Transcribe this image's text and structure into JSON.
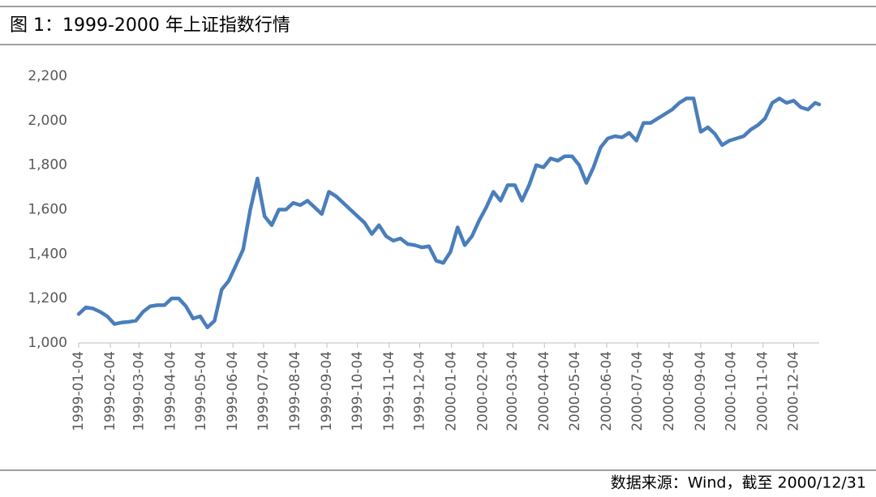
{
  "chart_data": {
    "type": "line",
    "title": "图 1：1999-2000 年上证指数行情",
    "source": "数据来源：Wind，截至 2000/12/31",
    "x": [
      "1999-01-04",
      "1999-01-11",
      "1999-01-18",
      "1999-01-25",
      "1999-02-01",
      "1999-02-08",
      "1999-02-15",
      "1999-02-22",
      "1999-03-01",
      "1999-03-08",
      "1999-03-15",
      "1999-03-22",
      "1999-03-29",
      "1999-04-05",
      "1999-04-12",
      "1999-04-19",
      "1999-04-26",
      "1999-05-03",
      "1999-05-10",
      "1999-05-17",
      "1999-05-24",
      "1999-05-31",
      "1999-06-07",
      "1999-06-14",
      "1999-06-21",
      "1999-06-28",
      "1999-07-05",
      "1999-07-12",
      "1999-07-19",
      "1999-07-26",
      "1999-08-02",
      "1999-08-09",
      "1999-08-16",
      "1999-08-23",
      "1999-08-30",
      "1999-09-06",
      "1999-09-13",
      "1999-09-20",
      "1999-09-27",
      "1999-10-04",
      "1999-10-11",
      "1999-10-18",
      "1999-10-25",
      "1999-11-01",
      "1999-11-08",
      "1999-11-15",
      "1999-11-22",
      "1999-11-29",
      "1999-12-06",
      "1999-12-13",
      "1999-12-20",
      "1999-12-27",
      "2000-01-03",
      "2000-01-10",
      "2000-01-17",
      "2000-01-24",
      "2000-01-31",
      "2000-02-07",
      "2000-02-14",
      "2000-02-21",
      "2000-02-28",
      "2000-03-06",
      "2000-03-13",
      "2000-03-20",
      "2000-03-27",
      "2000-04-03",
      "2000-04-10",
      "2000-04-17",
      "2000-04-24",
      "2000-05-01",
      "2000-05-08",
      "2000-05-15",
      "2000-05-22",
      "2000-05-29",
      "2000-06-05",
      "2000-06-12",
      "2000-06-19",
      "2000-06-26",
      "2000-07-03",
      "2000-07-10",
      "2000-07-17",
      "2000-07-24",
      "2000-07-31",
      "2000-08-07",
      "2000-08-14",
      "2000-08-21",
      "2000-08-28",
      "2000-09-04",
      "2000-09-11",
      "2000-09-18",
      "2000-09-25",
      "2000-10-02",
      "2000-10-09",
      "2000-10-16",
      "2000-10-23",
      "2000-10-30",
      "2000-11-06",
      "2000-11-13",
      "2000-11-20",
      "2000-11-27",
      "2000-12-04",
      "2000-12-11",
      "2000-12-18",
      "2000-12-25",
      "2000-12-29"
    ],
    "series": [
      {
        "name": "上证指数",
        "color": "#4a7ebb",
        "values": [
          1130,
          1160,
          1155,
          1140,
          1120,
          1085,
          1092,
          1095,
          1100,
          1140,
          1165,
          1170,
          1170,
          1200,
          1200,
          1165,
          1110,
          1120,
          1070,
          1100,
          1240,
          1280,
          1350,
          1420,
          1600,
          1740,
          1570,
          1530,
          1600,
          1600,
          1630,
          1620,
          1640,
          1610,
          1580,
          1680,
          1660,
          1630,
          1600,
          1570,
          1540,
          1490,
          1530,
          1480,
          1460,
          1470,
          1445,
          1440,
          1430,
          1435,
          1370,
          1360,
          1410,
          1520,
          1440,
          1480,
          1550,
          1610,
          1680,
          1640,
          1710,
          1710,
          1640,
          1710,
          1800,
          1790,
          1830,
          1820,
          1840,
          1840,
          1800,
          1720,
          1790,
          1880,
          1920,
          1930,
          1925,
          1945,
          1910,
          1990,
          1990,
          2010,
          2030,
          2050,
          2080,
          2100,
          2100,
          1950,
          1970,
          1940,
          1890,
          1910,
          1920,
          1930,
          1960,
          1980,
          2010,
          2080,
          2100,
          2080,
          2090,
          2060,
          2050,
          2080,
          2073
        ]
      }
    ],
    "xlim": [
      "1999-01-04",
      "2000-12-29"
    ],
    "xticks": [
      "1999-01-04",
      "1999-02-04",
      "1999-03-04",
      "1999-04-04",
      "1999-05-04",
      "1999-06-04",
      "1999-07-04",
      "1999-08-04",
      "1999-09-04",
      "1999-10-04",
      "1999-11-04",
      "1999-12-04",
      "2000-01-04",
      "2000-02-04",
      "2000-03-04",
      "2000-04-04",
      "2000-05-04",
      "2000-06-04",
      "2000-07-04",
      "2000-08-04",
      "2000-09-04",
      "2000-10-04",
      "2000-11-04",
      "2000-12-04"
    ],
    "ylim": [
      1000,
      2200
    ],
    "yticks": [
      {
        "value": 1000,
        "label": "1,000"
      },
      {
        "value": 1200,
        "label": "1,200"
      },
      {
        "value": 1400,
        "label": "1,400"
      },
      {
        "value": 1600,
        "label": "1,600"
      },
      {
        "value": 1800,
        "label": "1,800"
      },
      {
        "value": 2000,
        "label": "2,000"
      },
      {
        "value": 2200,
        "label": "2,200"
      }
    ],
    "grid": false
  }
}
